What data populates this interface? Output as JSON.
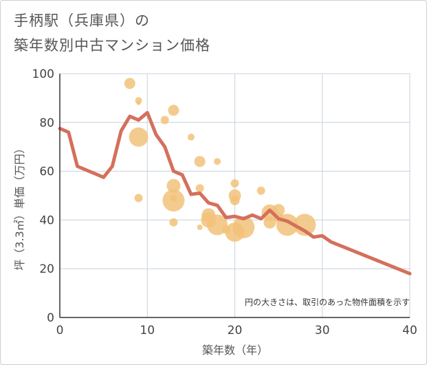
{
  "title": {
    "line1": "手柄駅（兵庫県）の",
    "line2": "築年数別中古マンション価格"
  },
  "colors": {
    "line": "#d4705c",
    "bubble": "#f2c27a",
    "grid": "#c8d1df",
    "axis": "#333333"
  },
  "chart_data": {
    "type": "scatter",
    "xlabel": "築年数（年）",
    "ylabel": "坪（3.3㎡）単価（万円）",
    "xlim": [
      0,
      40
    ],
    "ylim": [
      0,
      100
    ],
    "x_ticks": [
      0,
      10,
      20,
      30,
      40
    ],
    "y_ticks": [
      0,
      20,
      40,
      60,
      80,
      100
    ],
    "grid": true,
    "annotation": "円の大きさは、取引のあった物件面積を示す",
    "bubbles": [
      {
        "x": 8,
        "y": 96,
        "r": 8
      },
      {
        "x": 9,
        "y": 89,
        "r": 5
      },
      {
        "x": 9,
        "y": 88,
        "r": 3
      },
      {
        "x": 9,
        "y": 74,
        "r": 14
      },
      {
        "x": 9,
        "y": 49,
        "r": 6
      },
      {
        "x": 12,
        "y": 81,
        "r": 6
      },
      {
        "x": 13,
        "y": 85,
        "r": 8
      },
      {
        "x": 13,
        "y": 54,
        "r": 10
      },
      {
        "x": 13,
        "y": 48,
        "r": 16
      },
      {
        "x": 13,
        "y": 49,
        "r": 5
      },
      {
        "x": 13,
        "y": 39,
        "r": 6
      },
      {
        "x": 15,
        "y": 74,
        "r": 5
      },
      {
        "x": 16,
        "y": 64,
        "r": 8
      },
      {
        "x": 16,
        "y": 53,
        "r": 6
      },
      {
        "x": 16,
        "y": 37,
        "r": 4
      },
      {
        "x": 17,
        "y": 42,
        "r": 10
      },
      {
        "x": 17,
        "y": 40,
        "r": 11
      },
      {
        "x": 18,
        "y": 64,
        "r": 5
      },
      {
        "x": 18,
        "y": 38,
        "r": 15
      },
      {
        "x": 19,
        "y": 36,
        "r": 6
      },
      {
        "x": 20,
        "y": 55,
        "r": 6
      },
      {
        "x": 20,
        "y": 50,
        "r": 9
      },
      {
        "x": 20,
        "y": 48,
        "r": 7
      },
      {
        "x": 20,
        "y": 35,
        "r": 14
      },
      {
        "x": 21,
        "y": 37,
        "r": 16
      },
      {
        "x": 23,
        "y": 52,
        "r": 6
      },
      {
        "x": 24,
        "y": 43,
        "r": 12
      },
      {
        "x": 24,
        "y": 39,
        "r": 9
      },
      {
        "x": 25,
        "y": 44,
        "r": 9
      },
      {
        "x": 25,
        "y": 41,
        "r": 7
      },
      {
        "x": 26,
        "y": 38,
        "r": 16
      },
      {
        "x": 28,
        "y": 38,
        "r": 16
      }
    ],
    "series": [
      {
        "x": [
          0,
          1,
          2,
          3,
          4,
          5,
          6,
          7,
          8,
          9,
          10,
          11,
          12,
          13,
          14,
          15,
          16,
          17,
          18,
          19,
          20,
          21,
          22,
          23,
          24,
          25,
          26,
          27,
          28,
          29,
          30,
          31,
          40
        ],
        "y": [
          77.5,
          76,
          62,
          60.5,
          59,
          57.5,
          62,
          76.5,
          82.5,
          81,
          84,
          75,
          70,
          60,
          58.5,
          50.5,
          51,
          47,
          46,
          41,
          41.5,
          40.5,
          42,
          40.5,
          44,
          40.5,
          39.5,
          37.5,
          35.5,
          33,
          33.5,
          31,
          18
        ]
      }
    ]
  }
}
